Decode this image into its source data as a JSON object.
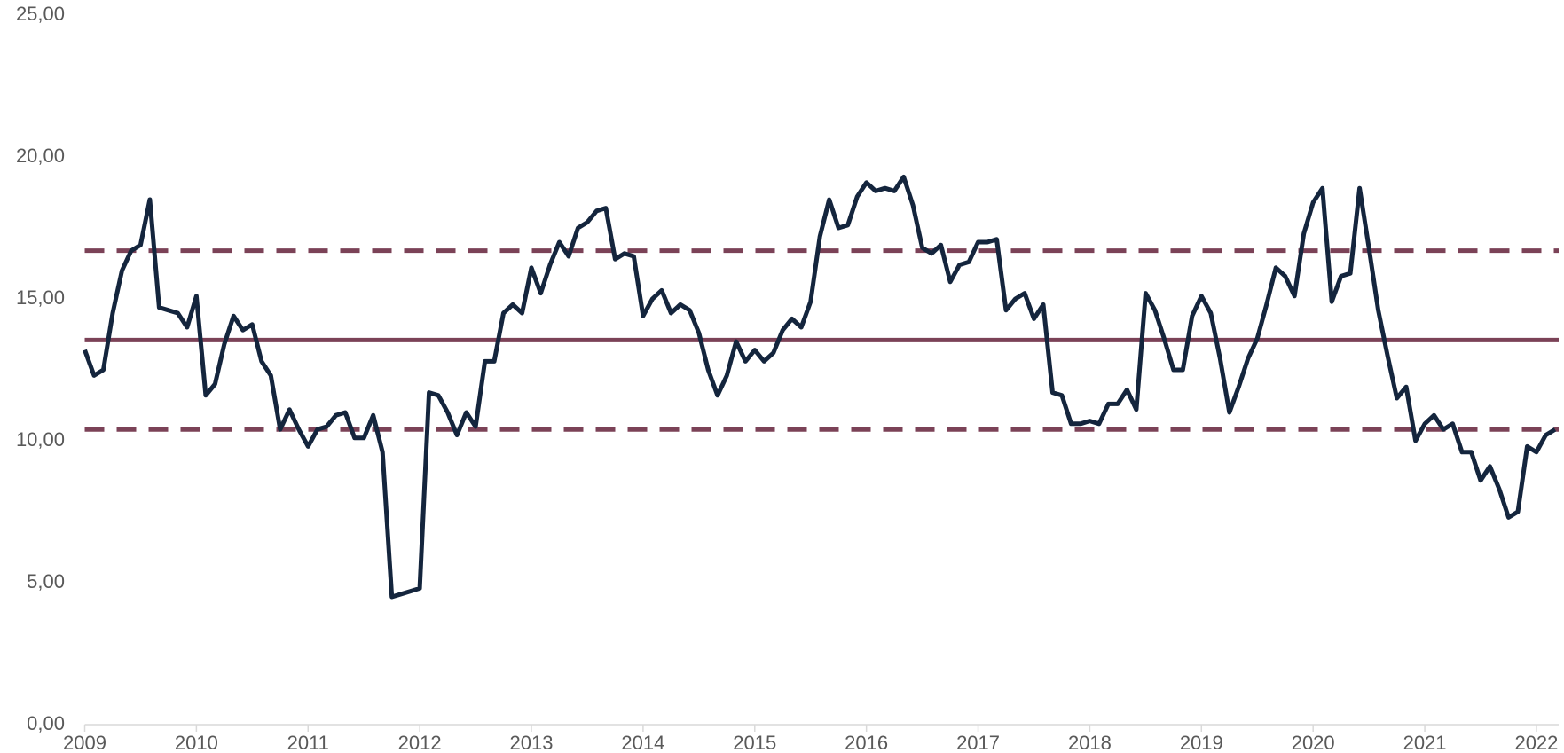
{
  "chart_data": {
    "type": "line",
    "categories": [
      "2009",
      null,
      null,
      null,
      null,
      null,
      null,
      null,
      null,
      null,
      null,
      null,
      "2010",
      null,
      null,
      null,
      null,
      null,
      null,
      null,
      null,
      null,
      null,
      null,
      "2011",
      null,
      null,
      null,
      null,
      null,
      null,
      null,
      null,
      null,
      null,
      null,
      "2012",
      null,
      null,
      null,
      null,
      null,
      null,
      null,
      null,
      null,
      null,
      null,
      "2013",
      null,
      null,
      null,
      null,
      null,
      null,
      null,
      null,
      null,
      null,
      null,
      "2014",
      null,
      null,
      null,
      null,
      null,
      null,
      null,
      null,
      null,
      null,
      null,
      "2015",
      null,
      null,
      null,
      null,
      null,
      null,
      null,
      null,
      null,
      null,
      null,
      "2016",
      null,
      null,
      null,
      null,
      null,
      null,
      null,
      null,
      null,
      null,
      null,
      "2017",
      null,
      null,
      null,
      null,
      null,
      null,
      null,
      null,
      null,
      null,
      null,
      "2018",
      null,
      null,
      null,
      null,
      null,
      null,
      null,
      null,
      null,
      null,
      null,
      "2019",
      null,
      null,
      null,
      null,
      null,
      null,
      null,
      null,
      null,
      null,
      null,
      "2020",
      null,
      null,
      null,
      null,
      null,
      null,
      null,
      null,
      null,
      null,
      null,
      "2021",
      null,
      null,
      null,
      null,
      null,
      null,
      null,
      null,
      null,
      null,
      null,
      "2022",
      null,
      null
    ],
    "series": [
      {
        "color": "#14253d",
        "values": [
          13.2,
          12.3,
          12.5,
          14.5,
          16.0,
          16.7,
          16.9,
          18.5,
          14.7,
          14.6,
          14.5,
          14.0,
          15.1,
          11.6,
          12.0,
          13.4,
          14.4,
          13.9,
          14.1,
          12.8,
          12.3,
          10.4,
          11.1,
          10.4,
          9.8,
          10.4,
          10.5,
          10.9,
          11.0,
          10.1,
          10.1,
          10.9,
          9.6,
          4.5,
          4.6,
          4.7,
          4.8,
          11.7,
          11.6,
          11.0,
          10.2,
          11.0,
          10.5,
          12.8,
          12.8,
          14.5,
          14.8,
          14.5,
          16.1,
          15.2,
          16.2,
          17.0,
          16.5,
          17.5,
          17.7,
          18.1,
          18.2,
          16.4,
          16.6,
          16.5,
          14.4,
          15.0,
          15.3,
          14.5,
          14.8,
          14.6,
          13.8,
          12.5,
          11.6,
          12.3,
          13.5,
          12.8,
          13.2,
          12.8,
          13.1,
          13.9,
          14.3,
          14.0,
          14.9,
          17.2,
          18.5,
          17.5,
          17.6,
          18.6,
          19.1,
          18.8,
          18.9,
          18.8,
          19.3,
          18.3,
          16.8,
          16.6,
          16.9,
          15.6,
          16.2,
          16.3,
          17.0,
          17.0,
          17.1,
          14.6,
          15.0,
          15.2,
          14.3,
          14.8,
          11.7,
          11.6,
          10.6,
          10.6,
          10.7,
          10.6,
          11.3,
          11.3,
          11.8,
          11.1,
          15.2,
          14.6,
          13.6,
          12.5,
          12.5,
          14.4,
          15.1,
          14.5,
          12.9,
          11.0,
          11.9,
          12.9,
          13.6,
          14.8,
          16.1,
          15.8,
          15.1,
          17.3,
          18.4,
          18.9,
          14.9,
          15.8,
          15.9,
          18.9,
          16.8,
          14.6,
          13.0,
          11.5,
          11.9,
          10.0,
          10.6,
          10.9,
          10.4,
          10.6,
          9.6,
          9.6,
          8.6,
          9.1,
          8.3,
          7.3,
          7.5,
          9.8,
          9.6,
          10.2,
          10.4
        ]
      }
    ],
    "reference_lines": [
      {
        "value": 16.7,
        "color": "#7b4257",
        "dashed": true
      },
      {
        "value": 13.55,
        "color": "#7b4257",
        "dashed": false
      },
      {
        "value": 10.4,
        "color": "#7b4257",
        "dashed": true
      }
    ],
    "ylim": [
      0,
      25
    ],
    "yticks": [
      {
        "value": 0,
        "label": "0,00"
      },
      {
        "value": 5,
        "label": "5,00"
      },
      {
        "value": 10,
        "label": "10,00"
      },
      {
        "value": 15,
        "label": "15,00"
      },
      {
        "value": 20,
        "label": "20,00"
      },
      {
        "value": 25,
        "label": "25,00"
      }
    ],
    "grid": false
  }
}
